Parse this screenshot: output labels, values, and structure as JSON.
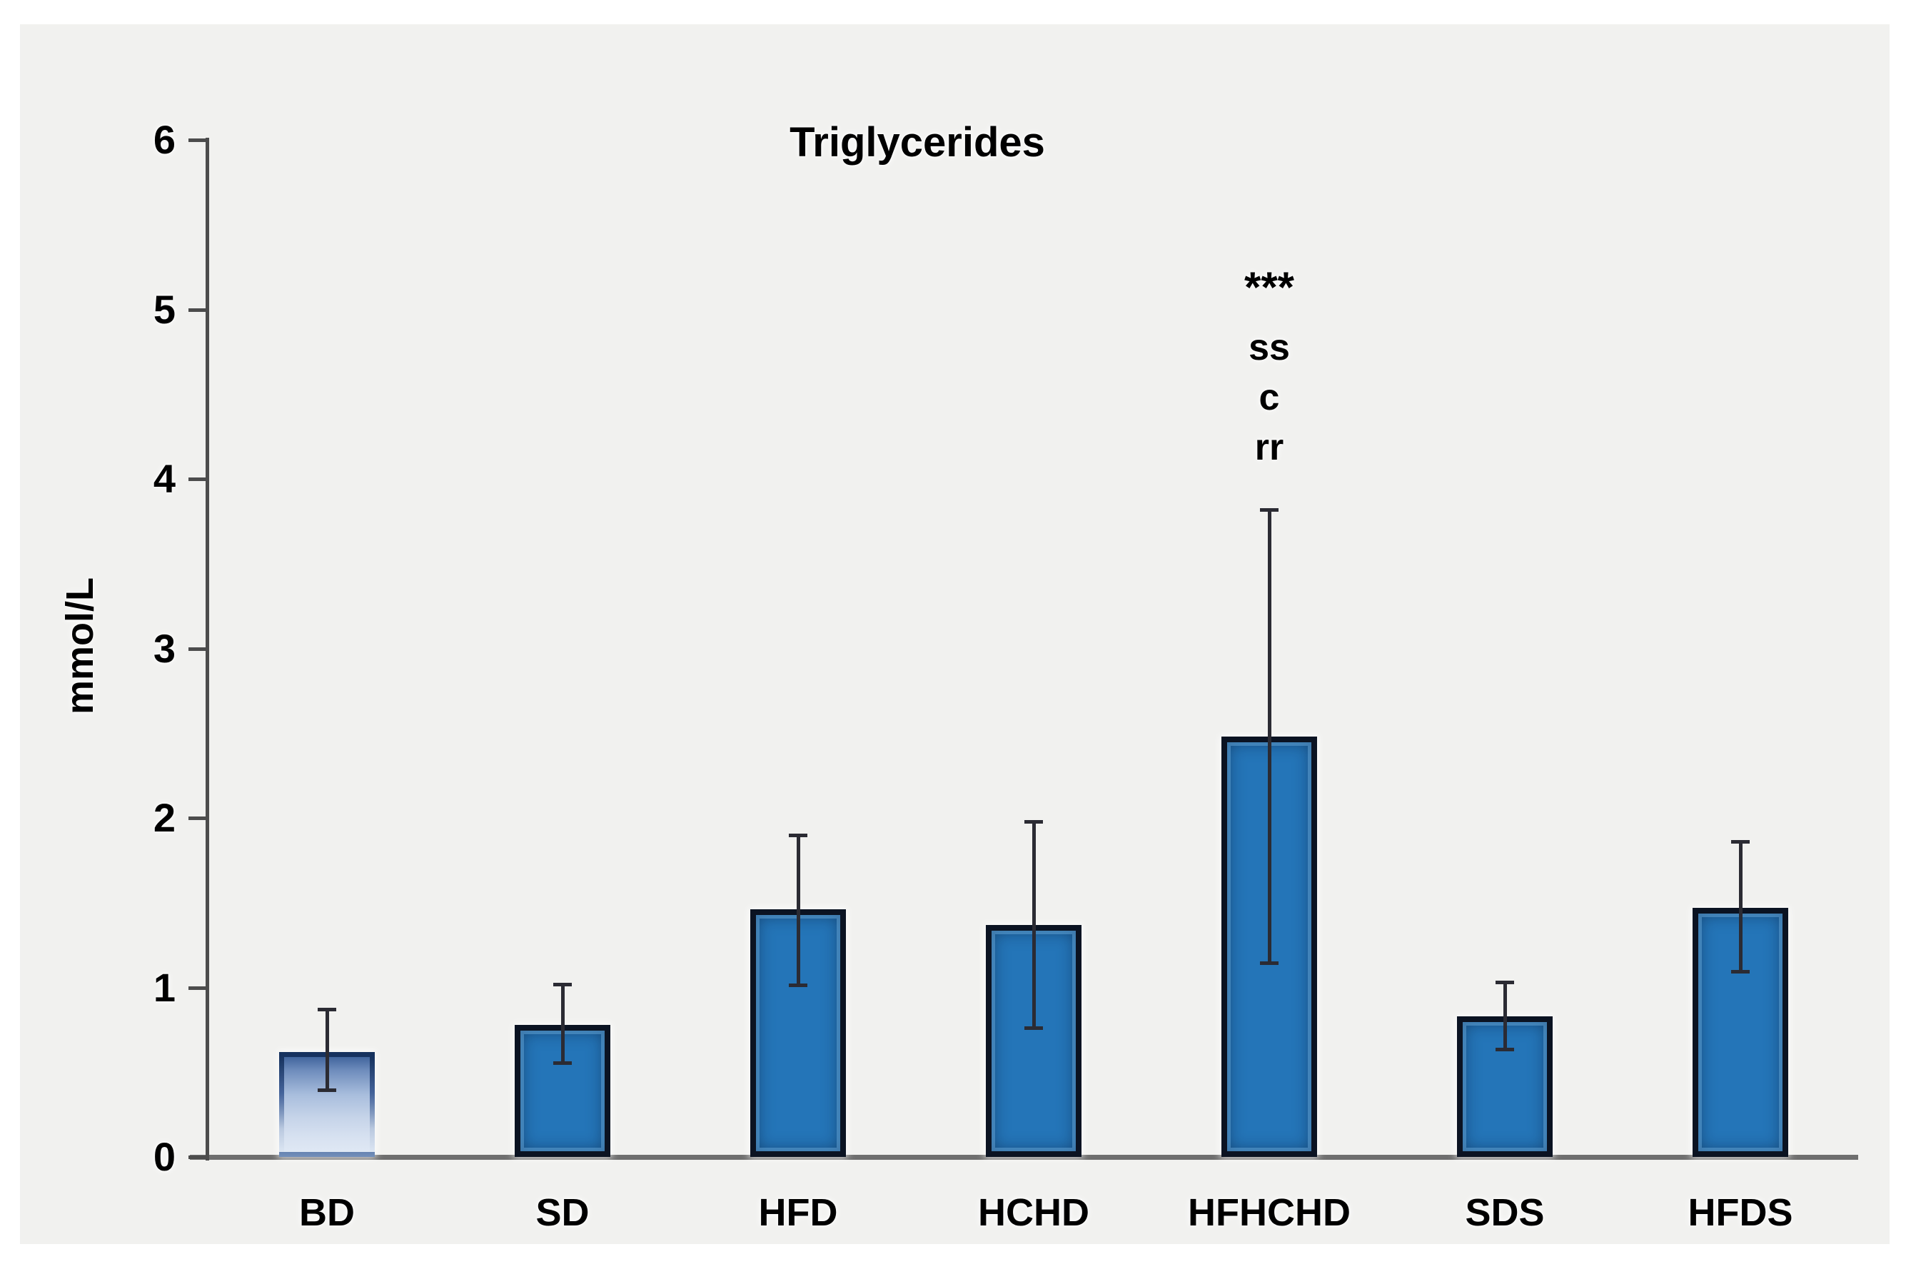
{
  "figure": {
    "background": "#ffffff",
    "panel_background": "#f1f1ef"
  },
  "chart_data": {
    "type": "bar",
    "title": "Triglycerides",
    "ylabel": "mmol/L",
    "xlabel": "",
    "ylim": [
      0,
      6
    ],
    "yticks": [
      0,
      1,
      2,
      3,
      4,
      5,
      6
    ],
    "grid": false,
    "legend": "none",
    "categories": [
      "BD",
      "SD",
      "HFD",
      "HCHD",
      "HFHCHD",
      "SDS",
      "HFDS"
    ],
    "values": [
      0.62,
      0.78,
      1.46,
      1.37,
      2.48,
      0.83,
      1.47
    ],
    "error_low": [
      0.39,
      0.55,
      1.01,
      0.76,
      1.14,
      0.63,
      1.09
    ],
    "error_high": [
      0.87,
      1.02,
      1.9,
      1.98,
      3.82,
      1.03,
      1.86
    ],
    "annotations": [
      {
        "target_category": "HFHCHD",
        "lines": [
          "***",
          "ss",
          "c",
          "rr"
        ]
      }
    ],
    "styles": {
      "bar_fill": "#2475b8",
      "bar_border": "#0b1322",
      "first_bar_gradient_top": "#41659d",
      "first_bar_gradient_bottom": "#dfe8f4",
      "error_color": "#2b2b33",
      "axis_color": "#4c4c4c",
      "baseline_color": "#6e6e6e",
      "text_color": "#000000"
    }
  }
}
